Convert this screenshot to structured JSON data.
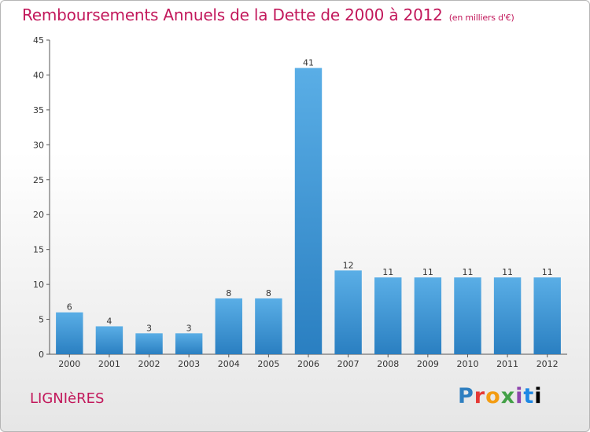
{
  "header": {
    "title": "Remboursements Annuels de la Dette de 2000 à 2012",
    "subtitle": "(en milliers d'€)"
  },
  "footer": {
    "commune": "LIGNIèRES",
    "logo_text": [
      "P",
      "r",
      "o",
      "x",
      "i",
      "t",
      "i"
    ]
  },
  "colors": {
    "bar_top": "#5aaee6",
    "bar_bottom": "#2a7fc1",
    "title": "#c2185b"
  },
  "chart_data": {
    "type": "bar",
    "categories": [
      "2000",
      "2001",
      "2002",
      "2003",
      "2004",
      "2005",
      "2006",
      "2007",
      "2008",
      "2009",
      "2010",
      "2011",
      "2012"
    ],
    "values": [
      6,
      4,
      3,
      3,
      8,
      8,
      41,
      12,
      11,
      11,
      11,
      11,
      11
    ],
    "title": "Remboursements Annuels de la Dette de 2000 à 2012",
    "ylim": [
      0,
      45
    ],
    "yticks": [
      0,
      5,
      10,
      15,
      20,
      25,
      30,
      35,
      40,
      45
    ],
    "grid": false,
    "data_labels": true
  }
}
